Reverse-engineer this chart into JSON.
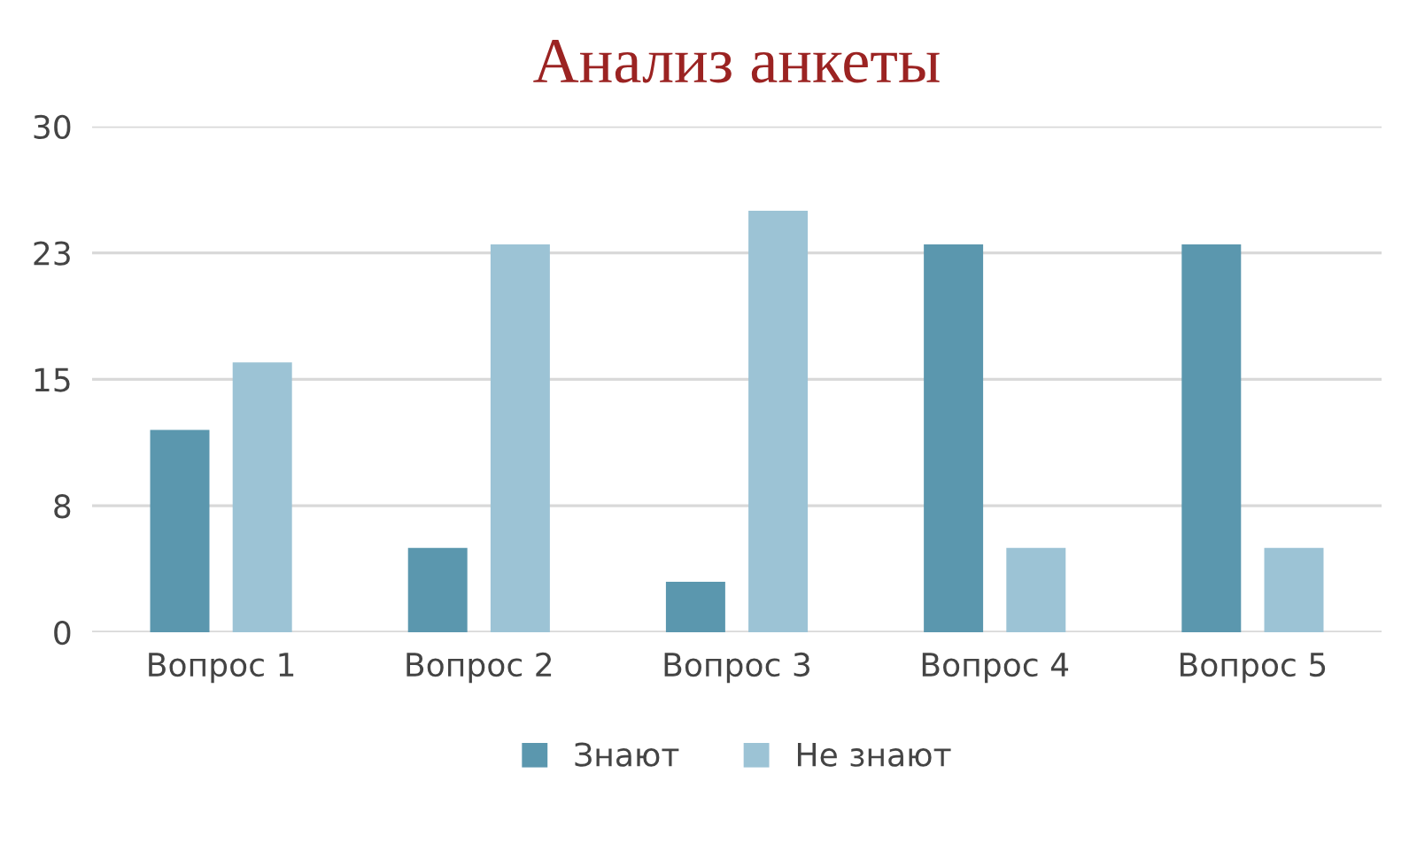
{
  "chart_data": {
    "type": "bar",
    "title": "Анализ анкеты",
    "categories": [
      "Вопрос 1",
      "Вопрос 2",
      "Вопрос 3",
      "Вопрос 4",
      "Вопрос 5"
    ],
    "series": [
      {
        "name": "Знают",
        "color": "#5b97ae",
        "values": [
          12,
          5,
          3,
          23,
          23
        ]
      },
      {
        "name": "Не знают",
        "color": "#9cc3d5",
        "values": [
          16,
          23,
          25,
          5,
          5
        ]
      }
    ],
    "ylim": [
      0,
      30
    ],
    "yticks": [
      0,
      {
        "value": 7.5,
        "label": "8"
      },
      15,
      {
        "value": 22.5,
        "label": "23"
      },
      30
    ],
    "grid": "y",
    "legend": "bottom"
  }
}
